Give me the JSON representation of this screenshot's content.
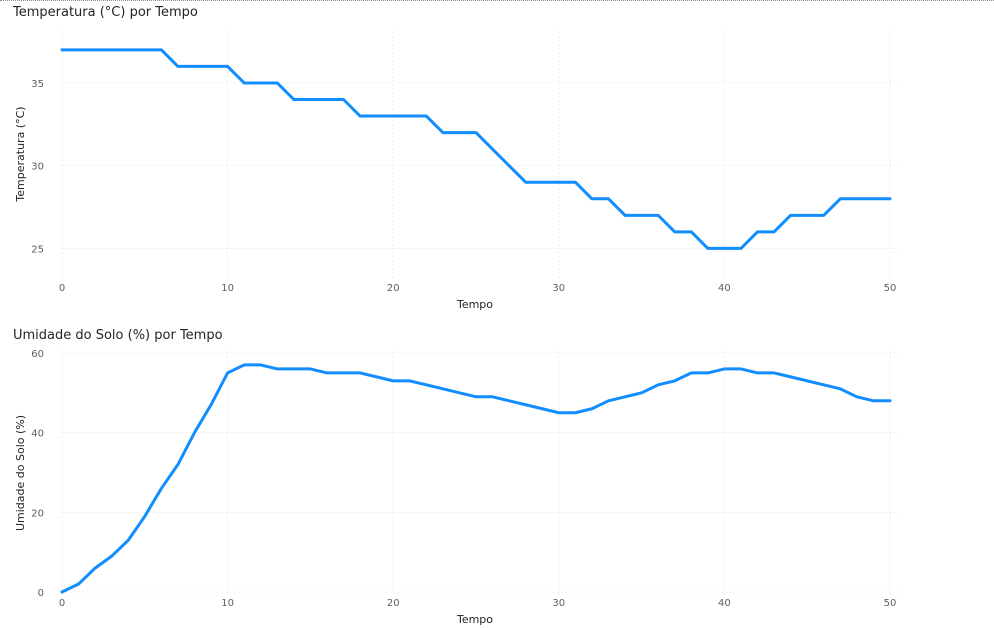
{
  "colors": {
    "series": "#118DFF"
  },
  "chart_data": [
    {
      "type": "line",
      "title": "Temperatura (°C) por Tempo",
      "xlabel": "Tempo",
      "ylabel": "Temperatura (°C)",
      "xlim": [
        0,
        50
      ],
      "ylim": [
        24.3,
        38.2
      ],
      "grid": true,
      "x_ticks": [
        0,
        10,
        20,
        30,
        40,
        50
      ],
      "y_ticks": [
        25,
        30,
        35
      ],
      "series": [
        {
          "x": [
            0,
            1,
            2,
            3,
            4,
            5,
            6,
            7,
            8,
            9,
            10,
            11,
            12,
            13,
            14,
            15,
            16,
            17,
            18,
            19,
            20,
            21,
            22,
            23,
            24,
            25,
            26,
            27,
            28,
            29,
            30,
            31,
            32,
            33,
            34,
            35,
            36,
            37,
            38,
            39,
            40,
            41,
            42,
            43,
            44,
            45,
            46,
            47,
            48,
            49,
            50
          ],
          "values": [
            37,
            37,
            37,
            37,
            37,
            37,
            37,
            36,
            36,
            36,
            36,
            35,
            35,
            35,
            34,
            34,
            34,
            34,
            33,
            33,
            33,
            33,
            33,
            32,
            32,
            32,
            31,
            30,
            29,
            29,
            29,
            29,
            28,
            28,
            27,
            27,
            27,
            26,
            26,
            25,
            25,
            25,
            26,
            26,
            27,
            27,
            27,
            28,
            28,
            28,
            28
          ]
        }
      ]
    },
    {
      "type": "line",
      "title": "Umidade do Solo (%) por Tempo",
      "xlabel": "Tempo",
      "ylabel": "Umidade do Solo (%)",
      "xlim": [
        0,
        50
      ],
      "ylim": [
        0,
        61
      ],
      "grid": true,
      "x_ticks": [
        0,
        10,
        20,
        30,
        40,
        50
      ],
      "y_ticks": [
        0,
        20,
        40,
        60
      ],
      "series": [
        {
          "x": [
            0,
            1,
            2,
            3,
            4,
            5,
            6,
            7,
            8,
            9,
            10,
            11,
            12,
            13,
            14,
            15,
            16,
            17,
            18,
            19,
            20,
            21,
            22,
            23,
            24,
            25,
            26,
            27,
            28,
            29,
            30,
            31,
            32,
            33,
            34,
            35,
            36,
            37,
            38,
            39,
            40,
            41,
            42,
            43,
            44,
            45,
            46,
            47,
            48,
            49,
            50
          ],
          "values": [
            0,
            2,
            6,
            9,
            13,
            19,
            26,
            32,
            40,
            47,
            55,
            57,
            57,
            56,
            56,
            56,
            55,
            55,
            55,
            54,
            53,
            53,
            52,
            51,
            50,
            49,
            49,
            48,
            47,
            46,
            45,
            45,
            46,
            48,
            49,
            50,
            52,
            53,
            55,
            55,
            56,
            56,
            55,
            55,
            54,
            53,
            52,
            51,
            49,
            48,
            48
          ]
        }
      ]
    }
  ]
}
